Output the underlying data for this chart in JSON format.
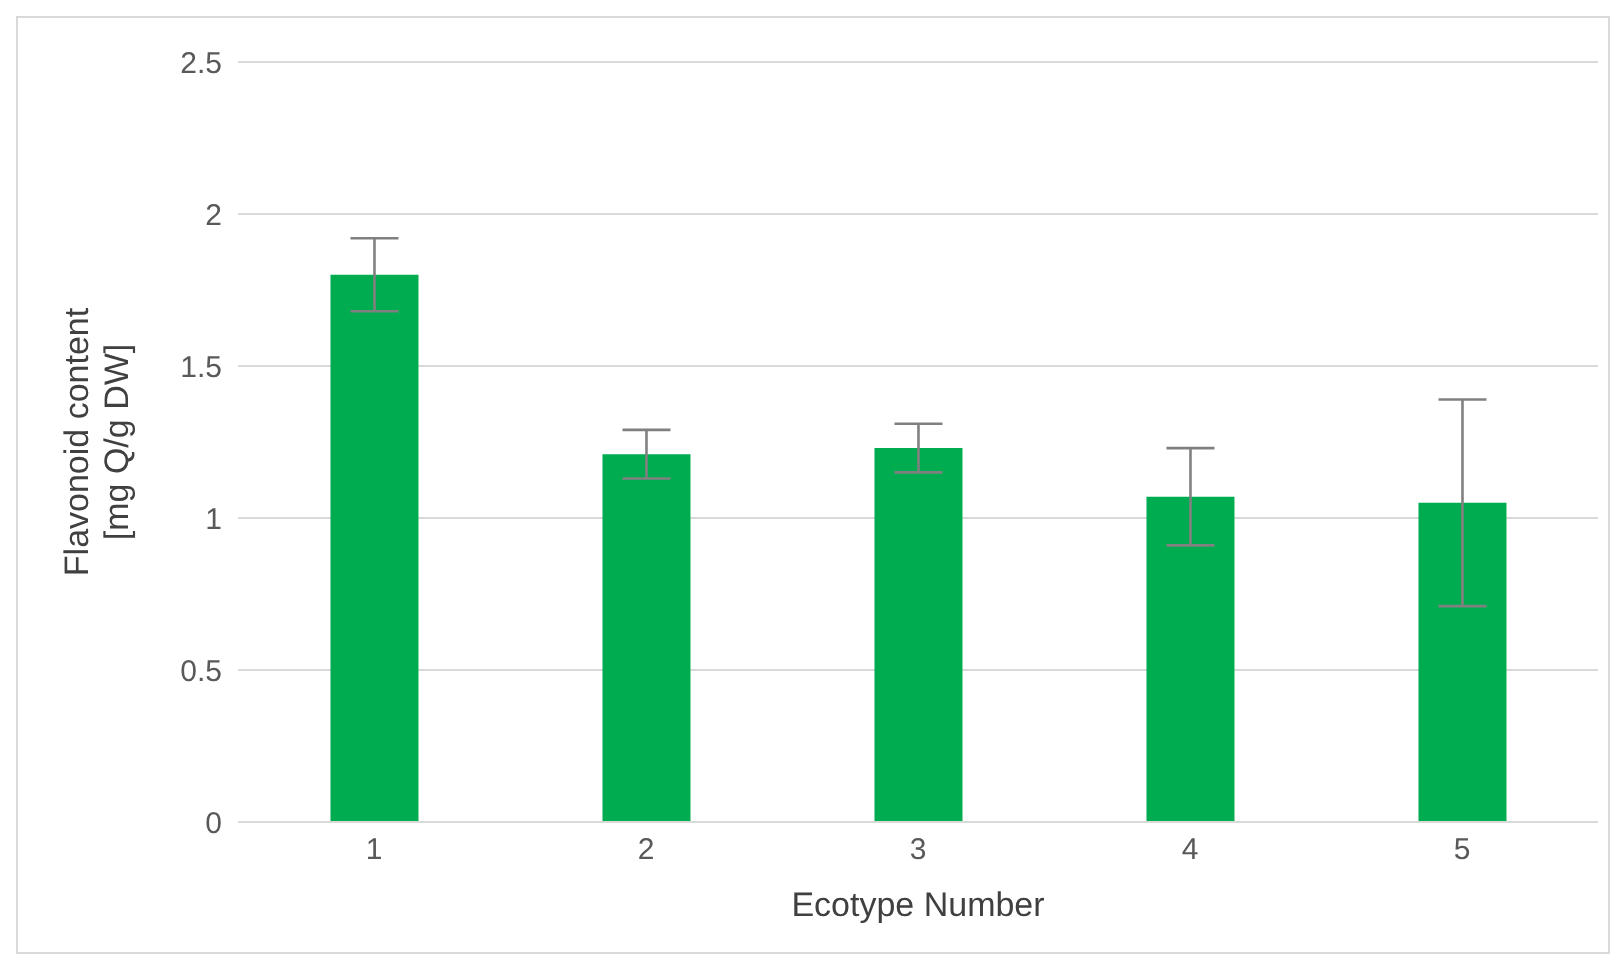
{
  "chart_data": {
    "type": "bar",
    "xlabel": "Ecotype Number",
    "ylabel": "Flavonoid content\n[mg Q/g DW]",
    "categories": [
      "1",
      "2",
      "3",
      "4",
      "5"
    ],
    "values": [
      1.8,
      1.21,
      1.23,
      1.07,
      1.05
    ],
    "errors": [
      0.12,
      0.08,
      0.08,
      0.16,
      0.34
    ],
    "color": "#00ac50",
    "ylim": [
      0,
      2.5
    ],
    "yticks": [
      0,
      0.5,
      1,
      1.5,
      2,
      2.5
    ],
    "grid": "y"
  }
}
